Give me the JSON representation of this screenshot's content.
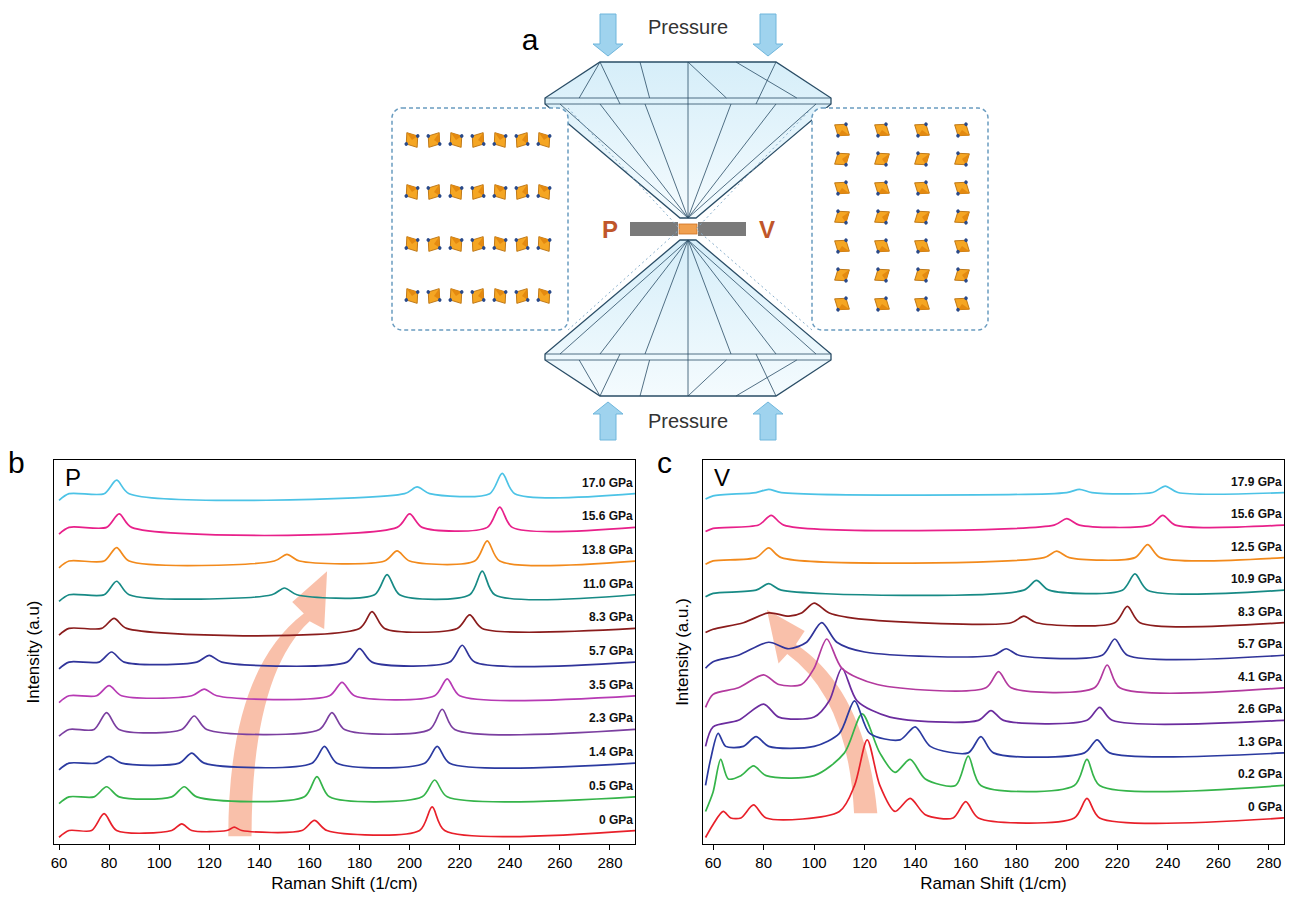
{
  "diagram": {
    "panel_label": "a",
    "top_label": "Pressure",
    "bottom_label": "Pressure",
    "left_label": "P",
    "right_label": "V"
  },
  "chart_data": [
    {
      "type": "line",
      "panel_label": "b",
      "title": "P",
      "x_label": "Raman Shift (1/cm)",
      "y_label": "Intensity (a.u)",
      "xlim": [
        58,
        290
      ],
      "xticks": [
        60,
        80,
        100,
        120,
        140,
        160,
        180,
        200,
        220,
        240,
        260,
        280
      ],
      "ylim": [
        -4,
        110
      ],
      "grid": false,
      "tick_labels": "x",
      "series": [
        {
          "name": "0 GPa",
          "color": "#e8202a",
          "x": [
            60,
            64,
            73,
            78,
            83,
            105,
            109,
            113,
            127,
            130,
            133,
            157,
            162,
            167,
            204,
            209,
            214,
            290
          ],
          "values": [
            -2,
            0,
            0,
            5,
            0,
            0,
            2,
            0,
            0,
            1,
            0,
            0,
            3,
            0,
            0,
            7,
            0,
            0
          ]
        },
        {
          "name": "0.5 GPa",
          "color": "#35b44a",
          "x": [
            60,
            64,
            74,
            79,
            84,
            105,
            110,
            115,
            158,
            163,
            168,
            205,
            210,
            215,
            290
          ],
          "values": [
            8,
            10,
            10,
            13,
            10,
            10,
            13,
            10,
            10,
            16,
            10,
            10,
            15,
            10,
            10
          ]
        },
        {
          "name": "1.4 GPa",
          "color": "#2b3aa0",
          "x": [
            60,
            64,
            75,
            80,
            85,
            108,
            113,
            118,
            161,
            166,
            171,
            206,
            211,
            216,
            290
          ],
          "values": [
            18,
            20,
            20,
            22,
            20,
            20,
            23,
            20,
            20,
            25,
            20,
            20,
            25,
            20,
            20
          ]
        },
        {
          "name": "2.3 GPa",
          "color": "#7b3fa0",
          "x": [
            60,
            64,
            74,
            79,
            84,
            109,
            114,
            119,
            164,
            169,
            174,
            208,
            213,
            218,
            290
          ],
          "values": [
            28,
            30,
            30,
            35,
            30,
            30,
            34,
            30,
            30,
            35,
            30,
            30,
            36,
            30,
            30
          ]
        },
        {
          "name": "3.5 GPa",
          "color": "#b73ab4",
          "x": [
            60,
            64,
            75,
            80,
            85,
            113,
            118,
            123,
            168,
            173,
            178,
            210,
            215,
            220,
            290
          ],
          "values": [
            38,
            40,
            40,
            43,
            40,
            40,
            42,
            40,
            40,
            44,
            40,
            40,
            45,
            40,
            40
          ]
        },
        {
          "name": "5.7 GPa",
          "color": "#30349a",
          "x": [
            60,
            64,
            76,
            81,
            86,
            115,
            120,
            125,
            175,
            180,
            185,
            216,
            221,
            226,
            290
          ],
          "values": [
            48,
            50,
            50,
            53,
            50,
            50,
            52,
            50,
            50,
            54,
            50,
            50,
            55,
            50,
            50
          ]
        },
        {
          "name": "8.3 GPa",
          "color": "#8a1c1c",
          "x": [
            60,
            64,
            77,
            82,
            87,
            180,
            185,
            190,
            219,
            224,
            229,
            290
          ],
          "values": [
            58,
            60,
            60,
            63,
            60,
            60,
            65,
            60,
            60,
            64,
            60,
            60
          ]
        },
        {
          "name": "11.0 GPa",
          "color": "#178a85",
          "x": [
            60,
            64,
            78,
            83,
            88,
            145,
            150,
            155,
            186,
            191,
            196,
            224,
            229,
            234,
            290
          ],
          "values": [
            68,
            70,
            70,
            74,
            70,
            70,
            72,
            70,
            70,
            76,
            70,
            70,
            77,
            70,
            70
          ]
        },
        {
          "name": "13.8 GPa",
          "color": "#f28a1c",
          "x": [
            60,
            64,
            78,
            83,
            88,
            146,
            151,
            156,
            190,
            195,
            200,
            226,
            231,
            236,
            290
          ],
          "values": [
            78,
            80,
            80,
            84,
            80,
            80,
            82,
            80,
            80,
            83,
            80,
            80,
            86,
            80,
            80
          ]
        },
        {
          "name": "15.6 GPa",
          "color": "#e8208a",
          "x": [
            60,
            64,
            79,
            84,
            89,
            195,
            200,
            205,
            231,
            236,
            241,
            290
          ],
          "values": [
            88,
            90,
            90,
            94,
            90,
            90,
            94,
            90,
            90,
            96,
            90,
            90
          ]
        },
        {
          "name": "17.0 GPa",
          "color": "#4cc3e6",
          "x": [
            60,
            64,
            78,
            83,
            88,
            198,
            203,
            208,
            232,
            237,
            242,
            290
          ],
          "values": [
            98,
            100,
            100,
            104,
            100,
            100,
            102,
            100,
            100,
            106,
            100,
            100
          ]
        }
      ]
    },
    {
      "type": "line",
      "panel_label": "c",
      "title": "V",
      "x_label": "Raman Shift (1/cm)",
      "y_label": "Intensity (a.u.)",
      "xlim": [
        56,
        286
      ],
      "xticks": [
        60,
        80,
        100,
        120,
        140,
        160,
        180,
        200,
        220,
        240,
        260,
        280
      ],
      "ylim": [
        -8,
        110
      ],
      "grid": false,
      "tick_labels": "x",
      "series": [
        {
          "name": "0 GPa",
          "color": "#e8202a",
          "x": [
            57,
            60,
            64,
            67,
            71,
            76,
            81,
            110,
            116,
            121,
            126,
            132,
            138,
            144,
            155,
            160,
            165,
            203,
            208,
            213,
            286
          ],
          "values": [
            -6,
            -2,
            2,
            0,
            0,
            4,
            0,
            2,
            10,
            24,
            10,
            2,
            6,
            1,
            0,
            5,
            0,
            0,
            6,
            0,
            0
          ]
        },
        {
          "name": "0.2 GPa",
          "color": "#35b44a",
          "x": [
            57,
            60,
            63,
            66,
            71,
            76,
            81,
            100,
            112,
            119,
            126,
            132,
            138,
            144,
            156,
            161,
            166,
            203,
            208,
            213,
            286
          ],
          "values": [
            2,
            8,
            18,
            12,
            13,
            16,
            13,
            13,
            20,
            32,
            20,
            14,
            18,
            12,
            10,
            19,
            10,
            10,
            18,
            10,
            10
          ]
        },
        {
          "name": "1.3 GPa",
          "color": "#2b3aa0",
          "x": [
            57,
            59,
            62,
            65,
            72,
            77,
            82,
            100,
            110,
            116,
            122,
            134,
            140,
            146,
            161,
            166,
            171,
            207,
            212,
            217,
            286
          ],
          "values": [
            10,
            18,
            26,
            22,
            22,
            25,
            22,
            22,
            26,
            36,
            26,
            24,
            28,
            22,
            20,
            25,
            20,
            20,
            24,
            20,
            20
          ]
        },
        {
          "name": "2.6 GPa",
          "color": "#6b2c9e",
          "x": [
            57,
            60,
            70,
            80,
            86,
            100,
            106,
            111,
            117,
            130,
            165,
            170,
            175,
            208,
            213,
            218,
            286
          ],
          "values": [
            22,
            28,
            30,
            35,
            31,
            31,
            36,
            46,
            36,
            31,
            30,
            33,
            30,
            30,
            34,
            30,
            30
          ]
        },
        {
          "name": "4.1 GPa",
          "color": "#b3399e",
          "x": [
            57,
            60,
            70,
            80,
            86,
            95,
            100,
            105,
            111,
            125,
            168,
            173,
            178,
            211,
            216,
            221,
            286
          ],
          "values": [
            34,
            38,
            40,
            44,
            41,
            41,
            46,
            55,
            46,
            41,
            40,
            45,
            40,
            40,
            47,
            40,
            40
          ]
        },
        {
          "name": "5.7 GPa",
          "color": "#30349a",
          "x": [
            57,
            60,
            70,
            82,
            90,
            97,
            103,
            109,
            120,
            171,
            176,
            181,
            214,
            219,
            224,
            286
          ],
          "values": [
            46,
            48,
            50,
            54,
            52,
            54,
            60,
            54,
            51,
            50,
            52,
            50,
            50,
            55,
            50,
            50
          ]
        },
        {
          "name": "8.3 GPa",
          "color": "#8a1c1c",
          "x": [
            57,
            60,
            72,
            82,
            90,
            95,
            100,
            106,
            120,
            178,
            183,
            188,
            219,
            224,
            229,
            286
          ],
          "values": [
            57,
            58,
            60,
            63,
            62,
            63,
            66,
            63,
            61,
            60,
            62,
            60,
            60,
            65,
            60,
            60
          ]
        },
        {
          "name": "10.9 GPa",
          "color": "#178a85",
          "x": [
            57,
            60,
            77,
            82,
            87,
            183,
            188,
            193,
            222,
            227,
            232,
            286
          ],
          "values": [
            68,
            69,
            70,
            72,
            70,
            70,
            73,
            70,
            70,
            75,
            70,
            70
          ]
        },
        {
          "name": "12.5 GPa",
          "color": "#f28a1c",
          "x": [
            57,
            60,
            77,
            82,
            87,
            191,
            196,
            201,
            227,
            232,
            237,
            286
          ],
          "values": [
            78,
            79,
            80,
            83,
            80,
            80,
            82,
            80,
            80,
            84,
            80,
            80
          ]
        },
        {
          "name": "15.6 GPa",
          "color": "#e8208a",
          "x": [
            57,
            60,
            78,
            83,
            88,
            195,
            200,
            205,
            233,
            238,
            243,
            286
          ],
          "values": [
            88,
            89,
            90,
            93,
            90,
            90,
            92,
            90,
            90,
            93,
            90,
            90
          ]
        },
        {
          "name": "17.9 GPa",
          "color": "#4cc3e6",
          "x": [
            57,
            60,
            77,
            82,
            87,
            200,
            205,
            210,
            234,
            239,
            244,
            286
          ],
          "values": [
            98,
            99,
            100,
            101,
            100,
            100,
            101,
            100,
            100,
            102,
            100,
            100
          ]
        }
      ]
    }
  ]
}
